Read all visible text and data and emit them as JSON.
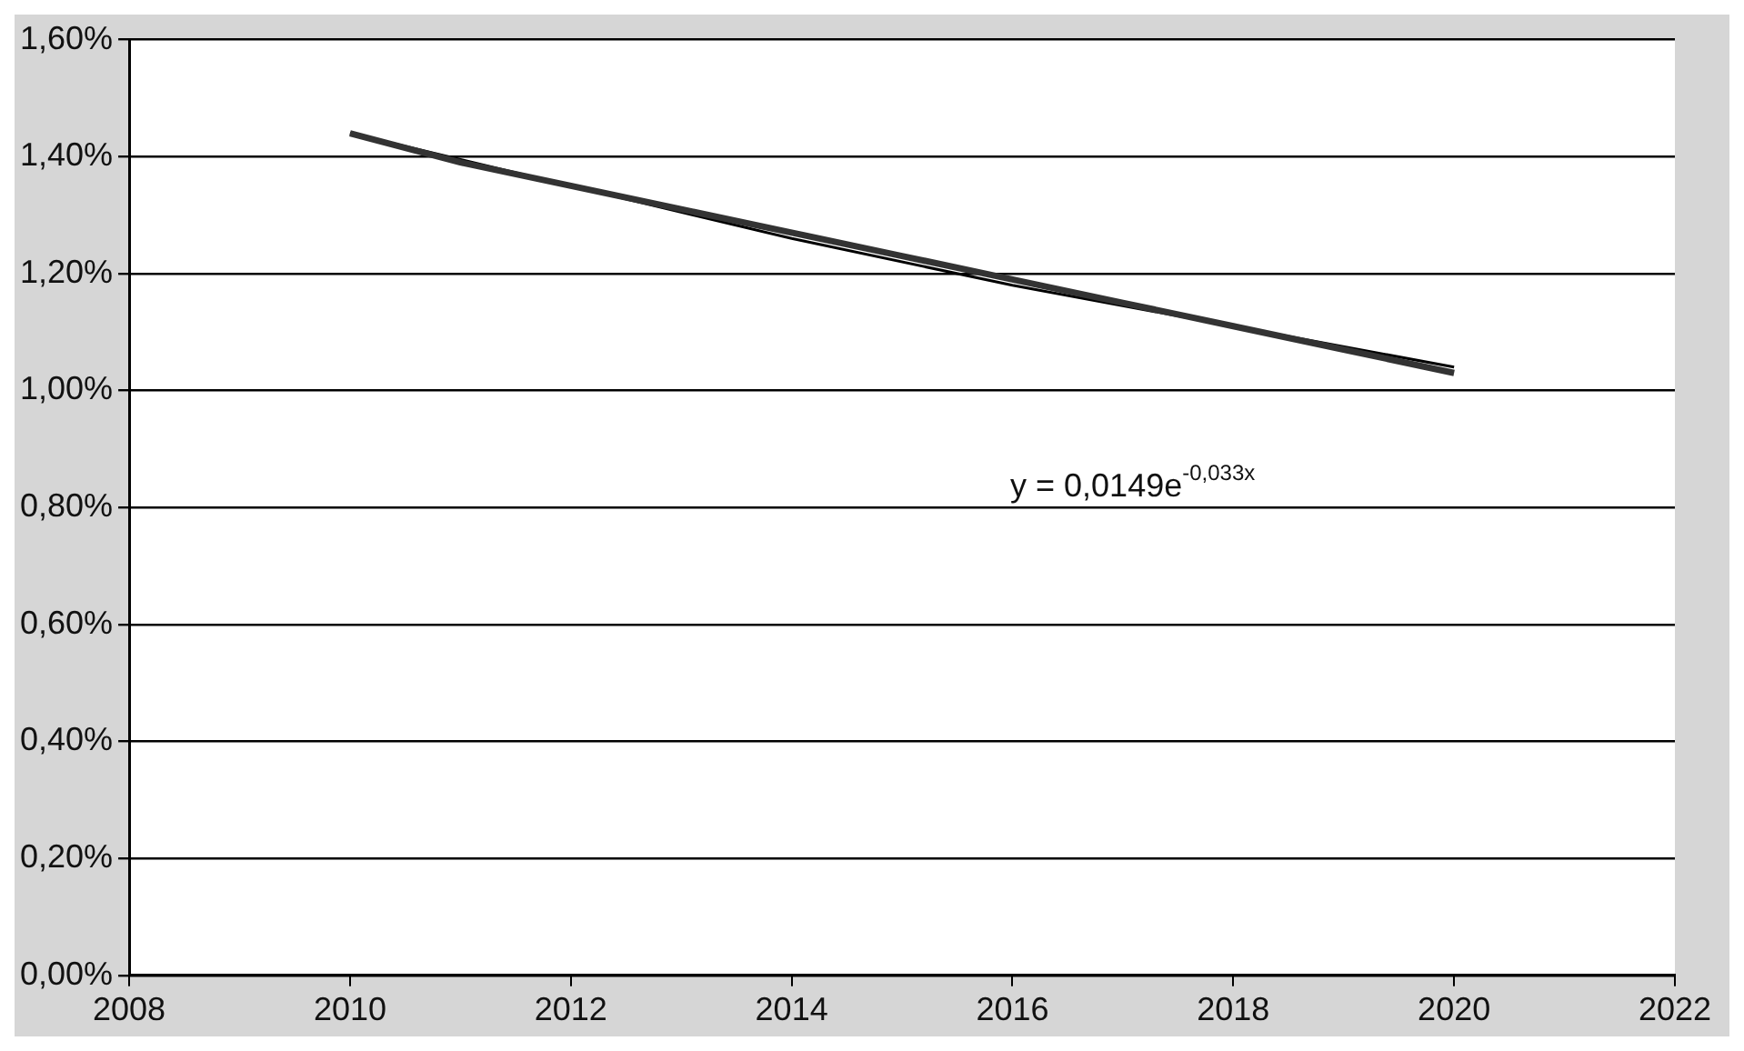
{
  "chart_data": {
    "type": "line",
    "x": [
      2010,
      2011,
      2012,
      2013,
      2014,
      2015,
      2016,
      2017,
      2018,
      2019,
      2020
    ],
    "series": [
      {
        "color": "#333333",
        "values": [
          1.44,
          1.39,
          1.35,
          1.31,
          1.27,
          1.23,
          1.19,
          1.15,
          1.11,
          1.07,
          1.03
        ]
      },
      {
        "type": "line",
        "color": "#000000",
        "x": [
          2010,
          2012,
          2014,
          2016,
          2018,
          2020
        ],
        "values": [
          1.44,
          1.35,
          1.26,
          1.18,
          1.11,
          1.04
        ]
      }
    ],
    "xlim": [
      2008,
      2022
    ],
    "xticks": [
      2008,
      2010,
      2012,
      2014,
      2016,
      2018,
      2020,
      2022
    ],
    "ylim": [
      0,
      1.6
    ],
    "yticks": [
      {
        "value": 0,
        "label": "0,00%"
      },
      {
        "value": 0.2,
        "label": "0,20%"
      },
      {
        "value": 0.4,
        "label": "0,40%"
      },
      {
        "value": 0.6,
        "label": "0,60%"
      },
      {
        "value": 0.8,
        "label": "0,80%"
      },
      {
        "value": 1.0,
        "label": "1,00%"
      },
      {
        "value": 1.2,
        "label": "1,20%"
      },
      {
        "value": 1.4,
        "label": "1,40%"
      },
      {
        "value": 1.6,
        "label": "1,60%"
      }
    ],
    "annotations": [
      "y = 0,0149e$^{-0,033x}$"
    ],
    "grid": "y",
    "legend": false,
    "marker": "none",
    "line_style": "solid"
  }
}
